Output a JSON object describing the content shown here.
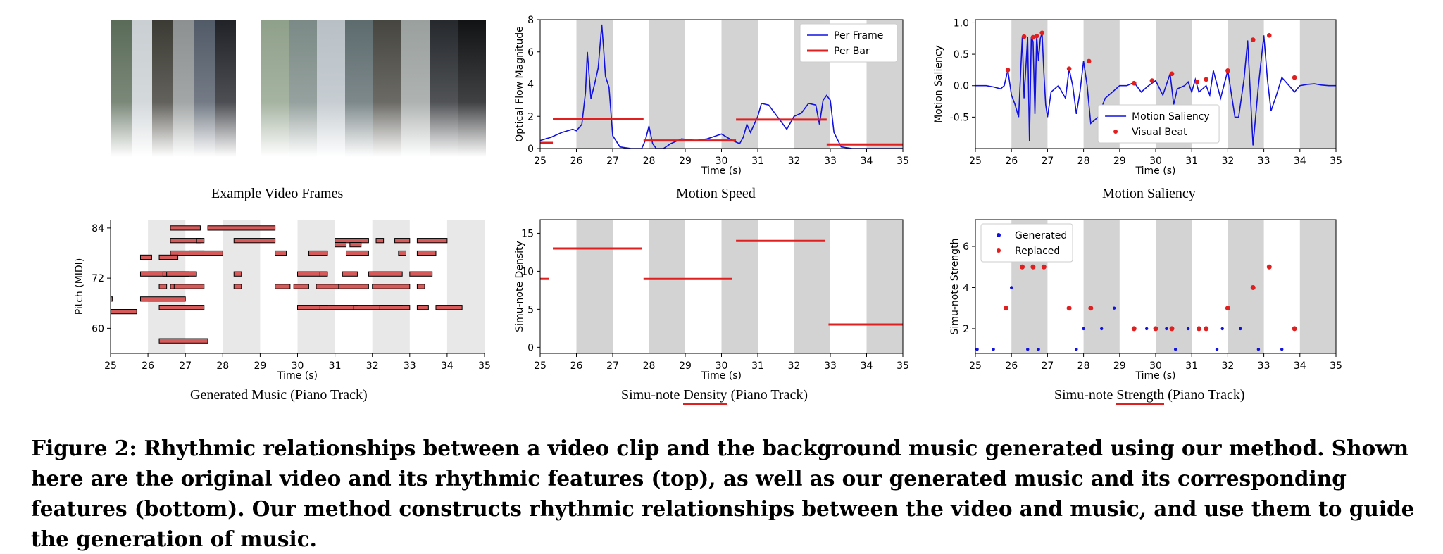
{
  "captions": {
    "video_frames": "Example Video Frames",
    "motion_speed": "Motion Speed",
    "motion_saliency": "Motion Saliency",
    "generated_music": "Generated Music (Piano Track)",
    "density_pre": "Simu-note ",
    "density_key": "Density",
    "density_post": " (Piano Track)",
    "strength_pre": "Simu-note ",
    "strength_key": "Strength",
    "strength_post": " (Piano Track)"
  },
  "figure_caption": "Figure 2: Rhythmic relationships between a video clip and the background music generated using our method. Shown here are the original video and its rhythmic features (top), as well as our generated music and its corresponding features (bottom). Our method constructs rhythmic relationships between the video and music, and use them to guide the generation of music.",
  "frame_colors_left": [
    "#5a6b58",
    "#c9cfd2",
    "#3b3a33",
    "#8c9090",
    "#515a67",
    "#202228"
  ],
  "frame_colors_right": [
    "#8fa08a",
    "#7b8a86",
    "#b8c0c6",
    "#5d6b6e",
    "#46453f",
    "#9aa09e",
    "#25282c",
    "#101214"
  ],
  "chart_data": [
    {
      "type": "line",
      "name": "motion_speed",
      "xlabel": "Time (s)",
      "ylabel": "Optical Flow Magnitude",
      "xlim": [
        25,
        35
      ],
      "ylim": [
        0,
        8
      ],
      "xticks": [
        25,
        26,
        27,
        28,
        29,
        30,
        31,
        32,
        33,
        34,
        35
      ],
      "yticks": [
        0,
        2,
        4,
        6,
        8
      ],
      "shaded_bands": [
        [
          26,
          27
        ],
        [
          28,
          29
        ],
        [
          30,
          31
        ],
        [
          32,
          33
        ],
        [
          34,
          35
        ]
      ],
      "legend": "top-right",
      "series": [
        {
          "name": "Per Frame",
          "color": "#1010e0",
          "x": [
            25,
            25.3,
            25.6,
            25.9,
            26.0,
            26.15,
            26.25,
            26.3,
            26.4,
            26.5,
            26.6,
            26.7,
            26.75,
            26.8,
            26.9,
            27.0,
            27.2,
            27.5,
            27.8,
            27.9,
            28.0,
            28.1,
            28.2,
            28.4,
            28.6,
            28.9,
            29.3,
            29.6,
            30.0,
            30.3,
            30.5,
            30.6,
            30.7,
            30.8,
            31.0,
            31.1,
            31.3,
            31.6,
            31.8,
            32.0,
            32.2,
            32.4,
            32.6,
            32.7,
            32.8,
            32.9,
            33.0,
            33.1,
            33.3,
            33.6,
            34.0,
            34.5,
            35.0
          ],
          "y": [
            0.5,
            0.7,
            1.0,
            1.2,
            1.1,
            1.5,
            3.5,
            6.0,
            3.1,
            4.0,
            5.0,
            7.7,
            6.2,
            4.5,
            3.8,
            0.8,
            0.1,
            0.0,
            0.0,
            0.5,
            1.4,
            0.3,
            0.0,
            0.0,
            0.3,
            0.6,
            0.5,
            0.6,
            0.9,
            0.5,
            0.3,
            0.7,
            1.5,
            1.0,
            2.0,
            2.8,
            2.7,
            1.8,
            1.2,
            2.0,
            2.2,
            2.8,
            2.7,
            1.5,
            3.0,
            3.3,
            3.0,
            1.0,
            0.1,
            0.0,
            0.0,
            0.0,
            0.0
          ]
        },
        {
          "name": "Per Bar",
          "color": "#e02020",
          "segments": [
            {
              "x": [
                25.0,
                25.35
              ],
              "y": 0.35
            },
            {
              "x": [
                25.35,
                27.85
              ],
              "y": 1.85
            },
            {
              "x": [
                27.85,
                30.4
              ],
              "y": 0.5
            },
            {
              "x": [
                30.4,
                32.9
              ],
              "y": 1.8
            },
            {
              "x": [
                32.9,
                35.0
              ],
              "y": 0.25
            }
          ]
        }
      ]
    },
    {
      "type": "line",
      "name": "motion_saliency",
      "xlabel": "Time (s)",
      "ylabel": "Motion Saliency",
      "xlim": [
        25,
        35
      ],
      "ylim": [
        -1.0,
        1.05
      ],
      "xticks": [
        25,
        26,
        27,
        28,
        29,
        30,
        31,
        32,
        33,
        34,
        35
      ],
      "yticks": [
        -0.5,
        0.0,
        0.5,
        1.0
      ],
      "shaded_bands": [
        [
          26,
          27
        ],
        [
          28,
          29
        ],
        [
          30,
          31
        ],
        [
          32,
          33
        ],
        [
          34,
          35
        ]
      ],
      "legend": "bottom-center",
      "series": [
        {
          "name": "Motion Saliency",
          "color": "#1010e0",
          "x": [
            25.0,
            25.3,
            25.5,
            25.7,
            25.8,
            25.9,
            26.0,
            26.1,
            26.2,
            26.3,
            26.35,
            26.45,
            26.5,
            26.55,
            26.6,
            26.65,
            26.7,
            26.75,
            26.8,
            26.85,
            26.9,
            26.95,
            27.0,
            27.1,
            27.3,
            27.5,
            27.6,
            27.7,
            27.8,
            27.9,
            28.0,
            28.1,
            28.2,
            28.4,
            28.6,
            28.8,
            29.0,
            29.2,
            29.4,
            29.6,
            29.8,
            30.0,
            30.2,
            30.4,
            30.5,
            30.6,
            30.8,
            30.9,
            31.0,
            31.1,
            31.2,
            31.3,
            31.4,
            31.5,
            31.6,
            31.8,
            32.0,
            32.2,
            32.3,
            32.45,
            32.55,
            32.7,
            32.85,
            33.0,
            33.1,
            33.2,
            33.35,
            33.5,
            33.7,
            33.85,
            34.0,
            34.2,
            34.4,
            34.6,
            34.8,
            35.0
          ],
          "y": [
            0.0,
            0.0,
            -0.02,
            -0.05,
            0.0,
            0.25,
            -0.15,
            -0.3,
            -0.5,
            0.78,
            -0.2,
            0.78,
            -0.88,
            0.78,
            0.7,
            -0.45,
            0.79,
            0.4,
            0.75,
            0.84,
            0.2,
            -0.3,
            -0.5,
            -0.1,
            0.0,
            -0.2,
            0.27,
            0.0,
            -0.45,
            -0.1,
            0.39,
            0.0,
            -0.6,
            -0.5,
            -0.2,
            -0.1,
            0.0,
            0.0,
            0.05,
            -0.1,
            0.0,
            0.08,
            -0.15,
            0.19,
            -0.3,
            -0.05,
            0.0,
            0.06,
            -0.1,
            0.1,
            -0.1,
            -0.05,
            0.0,
            -0.15,
            0.24,
            -0.2,
            0.24,
            -0.5,
            -0.5,
            0.1,
            0.72,
            -0.95,
            0.0,
            0.8,
            0.1,
            -0.4,
            -0.15,
            0.13,
            0.0,
            -0.1,
            0.0,
            0.02,
            0.03,
            0.01,
            0.0,
            0.0
          ]
        }
      ],
      "markers": {
        "name": "Visual Beat",
        "color": "#e02020",
        "x": [
          25.9,
          26.35,
          26.6,
          26.7,
          26.85,
          27.6,
          28.15,
          29.4,
          29.9,
          30.45,
          31.15,
          31.4,
          32.0,
          32.7,
          33.15,
          33.85
        ],
        "y": [
          0.25,
          0.78,
          0.77,
          0.79,
          0.84,
          0.27,
          0.39,
          0.04,
          0.08,
          0.19,
          0.06,
          0.1,
          0.24,
          0.73,
          0.8,
          0.13
        ]
      }
    },
    {
      "type": "scatter",
      "name": "generated_music",
      "xlabel": "Time (s)",
      "ylabel": "Pitch (MIDI)",
      "xlim": [
        25,
        35
      ],
      "ylim": [
        54,
        86
      ],
      "xticks": [
        25,
        26,
        27,
        28,
        29,
        30,
        31,
        32,
        33,
        34,
        35
      ],
      "yticks": [
        60,
        72,
        84
      ],
      "shaded_bands": [
        [
          26,
          27
        ],
        [
          28,
          29
        ],
        [
          30,
          31
        ],
        [
          32,
          33
        ],
        [
          34,
          35
        ]
      ],
      "note_color": "#d65a5a",
      "notes": [
        [
          26.6,
          27.4,
          84
        ],
        [
          27.6,
          29.4,
          84
        ],
        [
          26.6,
          27.4,
          81
        ],
        [
          27.3,
          27.5,
          81
        ],
        [
          28.3,
          29.4,
          81
        ],
        [
          31.0,
          31.9,
          81
        ],
        [
          32.1,
          32.3,
          81
        ],
        [
          32.6,
          33.0,
          81
        ],
        [
          33.2,
          34.0,
          81
        ],
        [
          31.0,
          31.3,
          80
        ],
        [
          31.4,
          31.7,
          80
        ],
        [
          26.6,
          27.5,
          78
        ],
        [
          27.1,
          28.0,
          78
        ],
        [
          29.4,
          29.7,
          78
        ],
        [
          30.3,
          30.8,
          78
        ],
        [
          31.3,
          31.9,
          78
        ],
        [
          32.7,
          32.9,
          78
        ],
        [
          33.2,
          33.7,
          78
        ],
        [
          25.8,
          26.1,
          77
        ],
        [
          26.3,
          26.8,
          77
        ],
        [
          25.8,
          26.5,
          73
        ],
        [
          26.4,
          27.1,
          73
        ],
        [
          26.5,
          27.3,
          73
        ],
        [
          28.3,
          28.5,
          73
        ],
        [
          30.0,
          30.6,
          73
        ],
        [
          30.6,
          30.8,
          73
        ],
        [
          31.2,
          31.6,
          73
        ],
        [
          31.9,
          32.8,
          73
        ],
        [
          33.0,
          33.6,
          73
        ],
        [
          26.3,
          26.5,
          70
        ],
        [
          26.6,
          27.1,
          70
        ],
        [
          26.7,
          27.5,
          70
        ],
        [
          28.3,
          28.5,
          70
        ],
        [
          29.4,
          29.8,
          70
        ],
        [
          29.9,
          30.3,
          70
        ],
        [
          30.5,
          31.8,
          70
        ],
        [
          31.1,
          31.9,
          70
        ],
        [
          32.0,
          33.0,
          70
        ],
        [
          33.2,
          33.4,
          70
        ],
        [
          25.8,
          27.0,
          67
        ],
        [
          25.0,
          25.05,
          67
        ],
        [
          26.3,
          27.5,
          65
        ],
        [
          30.0,
          30.8,
          65
        ],
        [
          30.6,
          31.6,
          65
        ],
        [
          31.5,
          32.8,
          65
        ],
        [
          32.2,
          33.0,
          65
        ],
        [
          33.2,
          33.5,
          65
        ],
        [
          33.7,
          34.4,
          65
        ],
        [
          25.0,
          25.7,
          64
        ],
        [
          26.3,
          27.6,
          57
        ]
      ]
    },
    {
      "type": "line",
      "name": "simu_note_density",
      "xlabel": "Time (s)",
      "ylabel": "Simu-note Density",
      "xlim": [
        25,
        35
      ],
      "ylim": [
        -0.8,
        16.8
      ],
      "xticks": [
        25,
        26,
        27,
        28,
        29,
        30,
        31,
        32,
        33,
        34,
        35
      ],
      "yticks": [
        0,
        5,
        10,
        15
      ],
      "shaded_bands": [
        [
          26,
          27
        ],
        [
          28,
          29
        ],
        [
          30,
          31
        ],
        [
          32,
          33
        ],
        [
          34,
          35
        ]
      ],
      "series": [
        {
          "color": "#e02020",
          "segments": [
            {
              "x": [
                25.0,
                25.25
              ],
              "y": 9
            },
            {
              "x": [
                25.35,
                27.8
              ],
              "y": 13
            },
            {
              "x": [
                27.85,
                30.3
              ],
              "y": 9
            },
            {
              "x": [
                30.4,
                32.85
              ],
              "y": 14
            },
            {
              "x": [
                32.95,
                35.0
              ],
              "y": 3
            }
          ]
        }
      ]
    },
    {
      "type": "scatter",
      "name": "simu_note_strength",
      "xlabel": "Time (s)",
      "ylabel": "Simu-note Strength",
      "xlim": [
        25,
        35
      ],
      "ylim": [
        0.8,
        7.3
      ],
      "xticks": [
        25,
        26,
        27,
        28,
        29,
        30,
        31,
        32,
        33,
        34,
        35
      ],
      "yticks": [
        2,
        4,
        6
      ],
      "shaded_bands": [
        [
          26,
          27
        ],
        [
          28,
          29
        ],
        [
          30,
          31
        ],
        [
          32,
          33
        ],
        [
          34,
          35
        ]
      ],
      "legend": "top-left",
      "series": [
        {
          "name": "Generated",
          "color": "#1010e0",
          "x": [
            25.05,
            25.5,
            26.0,
            26.45,
            26.75,
            27.8,
            28.0,
            28.5,
            28.85,
            29.75,
            30.3,
            30.55,
            30.9,
            31.7,
            31.85,
            32.35,
            32.85,
            33.5
          ],
          "y": [
            1,
            1,
            4,
            1,
            1,
            1,
            2,
            2,
            3,
            2,
            2,
            1,
            2,
            1,
            2,
            2,
            1,
            1
          ]
        },
        {
          "name": "Replaced",
          "color": "#e02020",
          "x": [
            25.85,
            26.3,
            26.6,
            26.9,
            27.6,
            28.2,
            29.4,
            30.0,
            30.45,
            31.2,
            31.4,
            32.0,
            32.7,
            33.15,
            33.85
          ],
          "y": [
            3,
            5,
            5,
            5,
            3,
            3,
            2,
            2,
            2,
            2,
            2,
            3,
            4,
            5,
            2
          ]
        }
      ]
    }
  ]
}
